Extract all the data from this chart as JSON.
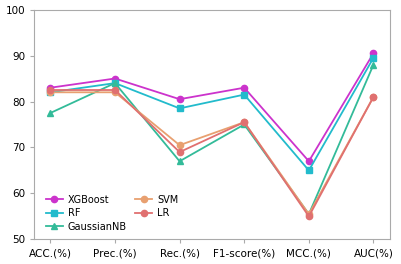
{
  "categories": [
    "ACC.(%)",
    "Prec.(%)",
    "Rec.(%)",
    "F1-score(%)",
    "MCC.(%)",
    "AUC(%)"
  ],
  "series": [
    {
      "label": "XGBoost",
      "color": "#CC33CC",
      "marker": "o",
      "values": [
        83.0,
        85.0,
        80.5,
        83.0,
        67.0,
        90.5
      ]
    },
    {
      "label": "RF",
      "color": "#22BBCC",
      "marker": "s",
      "values": [
        82.0,
        84.0,
        78.5,
        81.5,
        65.0,
        89.5
      ]
    },
    {
      "label": "GaussianNB",
      "color": "#33BB99",
      "marker": "^",
      "values": [
        77.5,
        84.0,
        67.0,
        75.0,
        55.5,
        88.0
      ]
    },
    {
      "label": "SVM",
      "color": "#E8A070",
      "marker": "o",
      "values": [
        82.0,
        82.0,
        70.5,
        75.5,
        55.5,
        81.0
      ]
    },
    {
      "label": "LR",
      "color": "#E07070",
      "marker": "o",
      "values": [
        82.5,
        82.5,
        69.0,
        75.5,
        55.0,
        81.0
      ]
    }
  ],
  "ylim": [
    50,
    100
  ],
  "yticks": [
    50,
    60,
    70,
    80,
    90,
    100
  ],
  "background_color": "#ffffff",
  "spine_color": "#aaaaaa",
  "tick_fontsize": 7.5,
  "legend_fontsize": 7.0
}
